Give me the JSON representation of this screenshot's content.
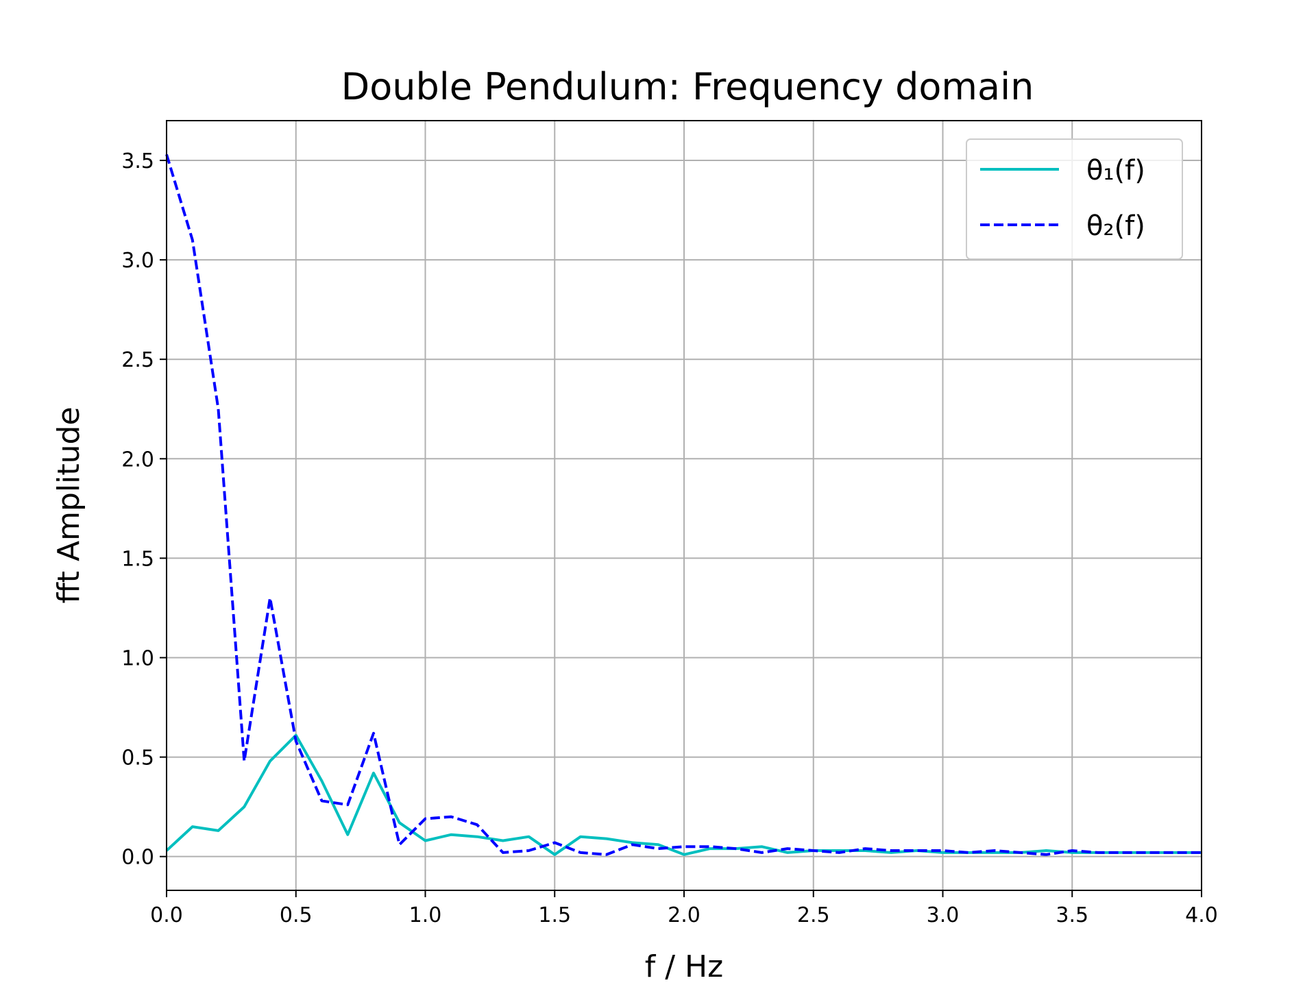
{
  "chart_data": {
    "type": "line",
    "title": "Double Pendulum: Frequency domain",
    "xlabel": "f / Hz",
    "ylabel": "fft Amplitude",
    "xlim": [
      0,
      4.0
    ],
    "ylim": [
      -0.17,
      3.7
    ],
    "xticks": [
      0.0,
      0.5,
      1.0,
      1.5,
      2.0,
      2.5,
      3.0,
      3.5,
      4.0
    ],
    "xtick_labels": [
      "0.0",
      "0.5",
      "1.0",
      "1.5",
      "2.0",
      "2.5",
      "3.0",
      "3.5",
      "4.0"
    ],
    "yticks": [
      0.0,
      0.5,
      1.0,
      1.5,
      2.0,
      2.5,
      3.0,
      3.5
    ],
    "ytick_labels": [
      "0.0",
      "0.5",
      "1.0",
      "1.5",
      "2.0",
      "2.5",
      "3.0",
      "3.5"
    ],
    "grid": true,
    "legend_position": "top-right",
    "x": [
      0.0,
      0.1,
      0.2,
      0.3,
      0.4,
      0.5,
      0.6,
      0.7,
      0.8,
      0.9,
      1.0,
      1.1,
      1.2,
      1.3,
      1.4,
      1.5,
      1.6,
      1.7,
      1.8,
      1.9,
      2.0,
      2.1,
      2.2,
      2.3,
      2.4,
      2.5,
      2.6,
      2.7,
      2.8,
      2.9,
      3.0,
      3.1,
      3.2,
      3.3,
      3.4,
      3.5,
      3.6,
      3.7,
      3.8,
      3.9,
      4.0
    ],
    "series": [
      {
        "name": "θ₁(f)",
        "color": "#00bfbf",
        "style": "solid",
        "values": [
          0.03,
          0.15,
          0.13,
          0.25,
          0.48,
          0.61,
          0.38,
          0.11,
          0.42,
          0.17,
          0.08,
          0.11,
          0.1,
          0.08,
          0.1,
          0.01,
          0.1,
          0.09,
          0.07,
          0.06,
          0.01,
          0.04,
          0.04,
          0.05,
          0.02,
          0.03,
          0.03,
          0.03,
          0.02,
          0.03,
          0.02,
          0.02,
          0.02,
          0.02,
          0.03,
          0.02,
          0.02,
          0.02,
          0.02,
          0.02,
          0.02
        ]
      },
      {
        "name": "θ₂(f)",
        "color": "#0000ff",
        "style": "dashed",
        "values": [
          3.53,
          3.1,
          2.25,
          0.48,
          1.3,
          0.58,
          0.28,
          0.26,
          0.62,
          0.06,
          0.19,
          0.2,
          0.16,
          0.02,
          0.03,
          0.07,
          0.02,
          0.01,
          0.06,
          0.04,
          0.05,
          0.05,
          0.04,
          0.02,
          0.04,
          0.03,
          0.02,
          0.04,
          0.03,
          0.03,
          0.03,
          0.02,
          0.03,
          0.02,
          0.01,
          0.03,
          0.02,
          0.02,
          0.02,
          0.02,
          0.02
        ]
      }
    ]
  }
}
